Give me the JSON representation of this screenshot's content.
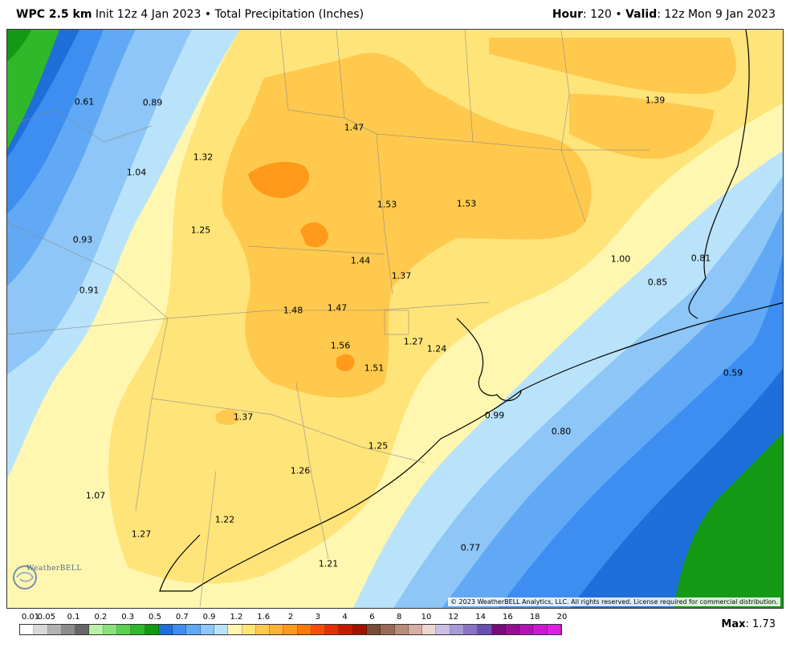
{
  "header": {
    "model_name": "WPC 2.5 km",
    "init_text": "Init 12z 4 Jan 2023",
    "separator": "•",
    "field_name": "Total Precipitation (Inches)",
    "hour_label": "Hour",
    "hour_value": ": 120",
    "valid_label": "Valid",
    "valid_value": ": 12z Mon 9 Jan 2023"
  },
  "map": {
    "copyright": "© 2023 WeatherBELL Analytics, LLC. All rights reserved. License required for commercial distribution.",
    "logo_text": "WeatherBELL",
    "labels": [
      {
        "text": "0.61",
        "val": 0.61
      },
      {
        "text": "0.89",
        "val": 0.89
      },
      {
        "text": "1.47",
        "val": 1.47
      },
      {
        "text": "1.39",
        "val": 1.39
      },
      {
        "text": "1.32",
        "val": 1.32
      },
      {
        "text": "1.04",
        "val": 1.04
      },
      {
        "text": "1.53",
        "val": 1.53
      },
      {
        "text": "1.53",
        "val": 1.53
      },
      {
        "text": "1.25",
        "val": 1.25
      },
      {
        "text": "0.93",
        "val": 0.93
      },
      {
        "text": "1.44",
        "val": 1.44
      },
      {
        "text": "1.00",
        "val": 1.0
      },
      {
        "text": "0.81",
        "val": 0.81
      },
      {
        "text": "1.37",
        "val": 1.37
      },
      {
        "text": "0.85",
        "val": 0.85
      },
      {
        "text": "0.91",
        "val": 0.91
      },
      {
        "text": "1.48",
        "val": 1.48
      },
      {
        "text": "1.47",
        "val": 1.47
      },
      {
        "text": "1.27",
        "val": 1.27
      },
      {
        "text": "1.56",
        "val": 1.56
      },
      {
        "text": "1.24",
        "val": 1.24
      },
      {
        "text": "1.51",
        "val": 1.51
      },
      {
        "text": "0.59",
        "val": 0.59
      },
      {
        "text": "0.99",
        "val": 0.99
      },
      {
        "text": "1.37",
        "val": 1.37
      },
      {
        "text": "0.80",
        "val": 0.8
      },
      {
        "text": "1.25",
        "val": 1.25
      },
      {
        "text": "1.26",
        "val": 1.26
      },
      {
        "text": "1.07",
        "val": 1.07
      },
      {
        "text": "1.22",
        "val": 1.22
      },
      {
        "text": "1.27",
        "val": 1.27
      },
      {
        "text": "0.77",
        "val": 0.77
      },
      {
        "text": "1.21",
        "val": 1.21
      }
    ]
  },
  "colorbar": {
    "labels": [
      "0.01",
      "0.05",
      "0.1",
      "0.2",
      "0.3",
      "0.5",
      "0.7",
      "0.9",
      "1.2",
      "1.6",
      "2",
      "3",
      "4",
      "6",
      "8",
      "10",
      "12",
      "14",
      "16",
      "18",
      "20"
    ],
    "colors": [
      "#ffffff",
      "#d9d9d9",
      "#b3b3b3",
      "#8c8c8c",
      "#666666",
      "#b7f0a8",
      "#8be27a",
      "#5cd14f",
      "#2fb82a",
      "#139913",
      "#1e6fd9",
      "#3d8ef0",
      "#62a9f5",
      "#8dc6f7",
      "#b9e3fa",
      "#fff7b0",
      "#ffe47a",
      "#ffc94d",
      "#ffb233",
      "#ff9a1a",
      "#ff7a00",
      "#ff4d00",
      "#e62e00",
      "#c41a00",
      "#a31000",
      "#7a4a3a",
      "#9a6a58",
      "#b88c7a",
      "#d4b0a3",
      "#ecd6d0",
      "#c9c0e6",
      "#a89ad6",
      "#8a73c4",
      "#6a4fb0",
      "#7a0a7a",
      "#950f95",
      "#b214b2",
      "#cc1acc",
      "#e020e0"
    ]
  },
  "max": {
    "label": "Max",
    "value": ": 1.73"
  }
}
